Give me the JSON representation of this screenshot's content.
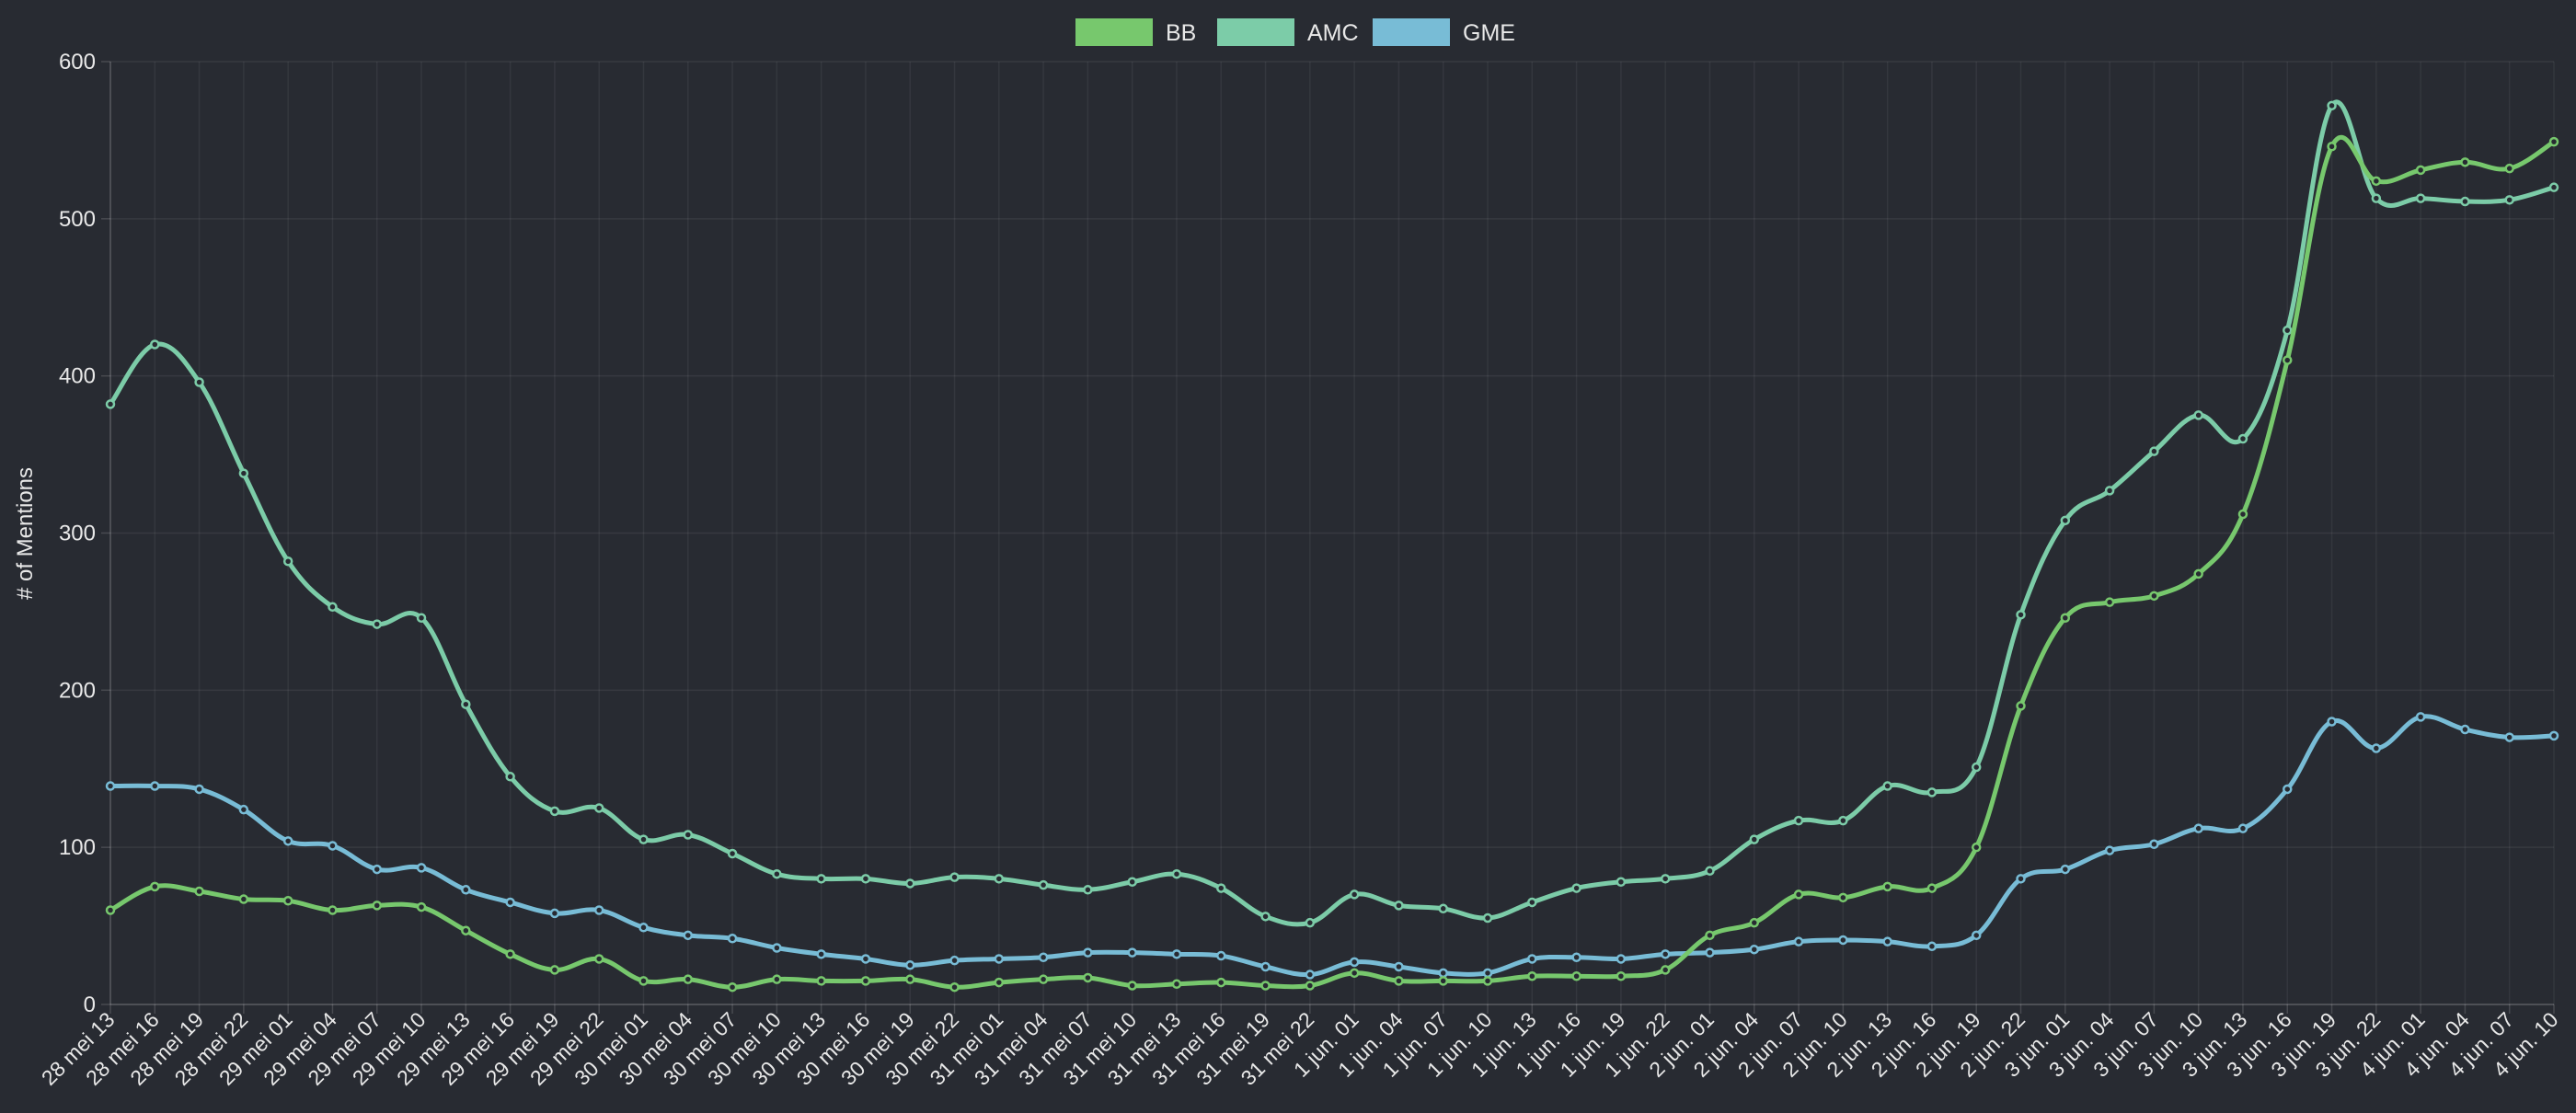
{
  "chart_data": {
    "type": "line",
    "title": "",
    "xlabel": "",
    "ylabel": "# of Mentions",
    "ylim": [
      0,
      600
    ],
    "yticks": [
      "0",
      "100",
      "200",
      "300",
      "400",
      "500",
      "600"
    ],
    "grid": true,
    "legend_position": "top",
    "categories": [
      "28 mei 13",
      "28 mei 16",
      "28 mei 19",
      "28 mei 22",
      "29 mei 01",
      "29 mei 04",
      "29 mei 07",
      "29 mei 10",
      "29 mei 13",
      "29 mei 16",
      "29 mei 19",
      "29 mei 22",
      "30 mei 01",
      "30 mei 04",
      "30 mei 07",
      "30 mei 10",
      "30 mei 13",
      "30 mei 16",
      "30 mei 19",
      "30 mei 22",
      "31 mei 01",
      "31 mei 04",
      "31 mei 07",
      "31 mei 10",
      "31 mei 13",
      "31 mei 16",
      "31 mei 19",
      "31 mei 22",
      "1 jun. 01",
      "1 jun. 04",
      "1 jun. 07",
      "1 jun. 10",
      "1 jun. 13",
      "1 jun. 16",
      "1 jun. 19",
      "1 jun. 22",
      "2 jun. 01",
      "2 jun. 04",
      "2 jun. 07",
      "2 jun. 10",
      "2 jun. 13",
      "2 jun. 16",
      "2 jun. 19",
      "2 jun. 22",
      "3 jun. 01",
      "3 jun. 04",
      "3 jun. 07",
      "3 jun. 10",
      "3 jun. 13",
      "3 jun. 16",
      "3 jun. 19",
      "3 jun. 22",
      "4 jun. 01",
      "4 jun. 04",
      "4 jun. 07",
      "4 jun. 10"
    ],
    "series": [
      {
        "name": "BB",
        "color": "#77c86d",
        "values": [
          60,
          75,
          72,
          67,
          66,
          60,
          63,
          62,
          47,
          32,
          22,
          29,
          15,
          16,
          11,
          16,
          15,
          15,
          16,
          11,
          14,
          16,
          17,
          12,
          13,
          14,
          12,
          12,
          20,
          15,
          15,
          15,
          18,
          18,
          18,
          22,
          44,
          52,
          70,
          68,
          75,
          74,
          100,
          190,
          246,
          256,
          260,
          274,
          312,
          410,
          546,
          524,
          531,
          536,
          532,
          549
        ]
      },
      {
        "name": "AMC",
        "color": "#7ccca8",
        "values": [
          382,
          420,
          396,
          338,
          282,
          253,
          242,
          246,
          191,
          145,
          123,
          125,
          105,
          108,
          96,
          83,
          80,
          80,
          77,
          81,
          80,
          76,
          73,
          78,
          83,
          74,
          56,
          52,
          70,
          63,
          61,
          55,
          65,
          74,
          78,
          80,
          85,
          105,
          117,
          117,
          139,
          135,
          151,
          248,
          308,
          327,
          352,
          375,
          360,
          429,
          572,
          513,
          513,
          511,
          512,
          520
        ]
      },
      {
        "name": "GME",
        "color": "#78bcd6",
        "values": [
          139,
          139,
          137,
          124,
          104,
          101,
          86,
          87,
          73,
          65,
          58,
          60,
          49,
          44,
          42,
          36,
          32,
          29,
          25,
          28,
          29,
          30,
          33,
          33,
          32,
          31,
          24,
          19,
          27,
          24,
          20,
          20,
          29,
          30,
          29,
          32,
          33,
          35,
          40,
          41,
          40,
          37,
          44,
          80,
          86,
          98,
          102,
          112,
          112,
          137,
          180,
          163,
          183,
          175,
          170,
          171
        ]
      }
    ]
  }
}
